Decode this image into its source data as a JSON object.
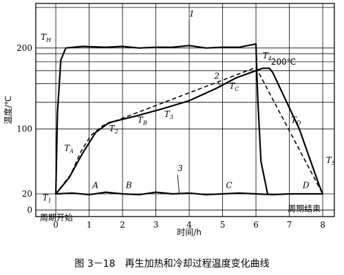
{
  "chart_data": {
    "type": "line",
    "title": "图 3－18　再生加热和冷却过程温度变化曲线",
    "xlabel": "时间/h",
    "ylabel": "温度/℃",
    "xlim": [
      -0.6,
      8.35
    ],
    "ylim": [
      -8,
      255
    ],
    "x_ticks": [
      0,
      1,
      2,
      3,
      4,
      5,
      6,
      7,
      8
    ],
    "x_tick_labels": [
      "0",
      "1",
      "2",
      "3",
      "4",
      "5",
      "6",
      "7",
      "8"
    ],
    "y_tick_labels": [
      {
        "value": 200,
        "text": "200"
      },
      {
        "value": 100,
        "text": "100"
      },
      {
        "value": 20,
        "text": "20"
      },
      {
        "value": 0,
        "text": "0"
      }
    ],
    "h_gridlines": [
      0,
      20,
      100,
      133,
      156,
      172,
      183,
      193,
      200,
      250
    ],
    "v_gridlines": [
      0,
      1,
      2,
      3,
      4,
      5,
      6,
      7,
      8
    ],
    "grid": true,
    "series": [
      {
        "name": "1",
        "style": "solid",
        "points": [
          [
            0,
            20
          ],
          [
            0.05,
            120
          ],
          [
            0.15,
            185
          ],
          [
            0.3,
            200
          ],
          [
            0.8,
            202
          ],
          [
            1.5,
            201
          ],
          [
            2,
            202
          ],
          [
            2.5,
            200
          ],
          [
            3,
            201
          ],
          [
            3.5,
            201
          ],
          [
            4,
            203
          ],
          [
            4.5,
            200
          ],
          [
            5,
            201
          ],
          [
            5.5,
            201
          ],
          [
            6,
            205
          ],
          [
            6.05,
            140
          ],
          [
            6.15,
            60
          ],
          [
            6.35,
            20
          ]
        ]
      },
      {
        "name": "2",
        "style": "solid",
        "points": [
          [
            0,
            20
          ],
          [
            0.4,
            40
          ],
          [
            0.8,
            70
          ],
          [
            1.2,
            96
          ],
          [
            1.6,
            108
          ],
          [
            2.4,
            116
          ],
          [
            3.2,
            125
          ],
          [
            4,
            135
          ],
          [
            4.8,
            150
          ],
          [
            5.4,
            163
          ],
          [
            6,
            172
          ],
          [
            6.2,
            175
          ],
          [
            6.4,
            175
          ],
          [
            6.5,
            170
          ],
          [
            6.9,
            135
          ],
          [
            7.3,
            100
          ],
          [
            7.6,
            65
          ],
          [
            7.9,
            30
          ],
          [
            8,
            20
          ]
        ]
      },
      {
        "name": "3",
        "style": "solid",
        "points": [
          [
            0,
            20
          ],
          [
            0.5,
            21
          ],
          [
            1,
            19
          ],
          [
            1.5,
            22
          ],
          [
            2,
            20
          ],
          [
            2.5,
            19
          ],
          [
            3,
            22
          ],
          [
            3.5,
            20
          ],
          [
            4,
            21
          ],
          [
            4.5,
            19
          ],
          [
            5,
            20
          ],
          [
            5.5,
            21
          ],
          [
            6,
            20
          ],
          [
            6.5,
            19
          ],
          [
            7,
            20
          ],
          [
            7.5,
            20
          ],
          [
            8,
            20
          ]
        ]
      },
      {
        "name": "",
        "style": "dashed",
        "points": [
          [
            0,
            20
          ],
          [
            0.45,
            44
          ],
          [
            0.75,
            72
          ],
          [
            1.05,
            92
          ],
          [
            1.4,
            104
          ],
          [
            6,
            176
          ],
          [
            8,
            20
          ]
        ]
      }
    ],
    "annotations": [
      {
        "text": "T",
        "sub": "H",
        "x": -0.45,
        "y": 210
      },
      {
        "text": "T",
        "sub": "1",
        "x": -0.4,
        "y": 12
      },
      {
        "text": "T",
        "sub": "A",
        "x": 0.25,
        "y": 73
      },
      {
        "text": "T",
        "sub": "2",
        "x": 1.6,
        "y": 97
      },
      {
        "text": "T",
        "sub": "B",
        "x": 2.45,
        "y": 108
      },
      {
        "text": "T",
        "sub": "3",
        "x": 3.25,
        "y": 115
      },
      {
        "text": "T",
        "sub": "C",
        "x": 5.2,
        "y": 150
      },
      {
        "text": "T",
        "sub": "4",
        "x": 6.2,
        "y": 187
      },
      {
        "text": "T",
        "sub": "D",
        "x": 7.05,
        "y": 108
      },
      {
        "text": "T",
        "sub": "5",
        "x": 8.1,
        "y": 58
      },
      {
        "text": "A",
        "x": 1.1,
        "y": 27
      },
      {
        "text": "B",
        "x": 2.1,
        "y": 27
      },
      {
        "text": "C",
        "x": 5.1,
        "y": 27
      },
      {
        "text": "D",
        "x": 7.4,
        "y": 27
      },
      {
        "text": "1",
        "x": 4.0,
        "y": 239
      },
      {
        "text": "2",
        "x": 4.75,
        "y": 162
      },
      {
        "text": "3",
        "x": 3.65,
        "y": 48
      }
    ],
    "notes": {
      "temp_label": "200℃",
      "start_label": "周期开始",
      "end_label": "周期结束"
    }
  }
}
